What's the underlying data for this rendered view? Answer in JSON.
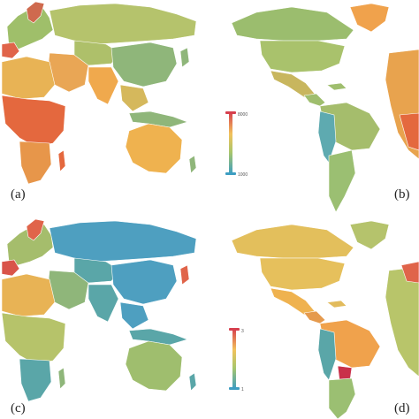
{
  "panels": [
    {
      "id": "a",
      "label": "(a)",
      "view": "eurasia-africa-oceania"
    },
    {
      "id": "b",
      "label": "(b)",
      "view": "americas"
    },
    {
      "id": "c",
      "label": "(c)",
      "view": "eurasia-africa-oceania"
    },
    {
      "id": "d",
      "label": "(d)",
      "view": "americas"
    }
  ],
  "legends": [
    {
      "id": "legend-top",
      "max": "8000",
      "min": "1000"
    },
    {
      "id": "legend-bottom",
      "max": "3",
      "min": "1"
    }
  ],
  "colors": {
    "high": "#d6404e",
    "mid_high": "#f08a4b",
    "mid": "#f2c25c",
    "mid_low": "#b8c56a",
    "low": "#5aa6a8",
    "lowest": "#3d8fc2",
    "border": "#ffffff"
  }
}
